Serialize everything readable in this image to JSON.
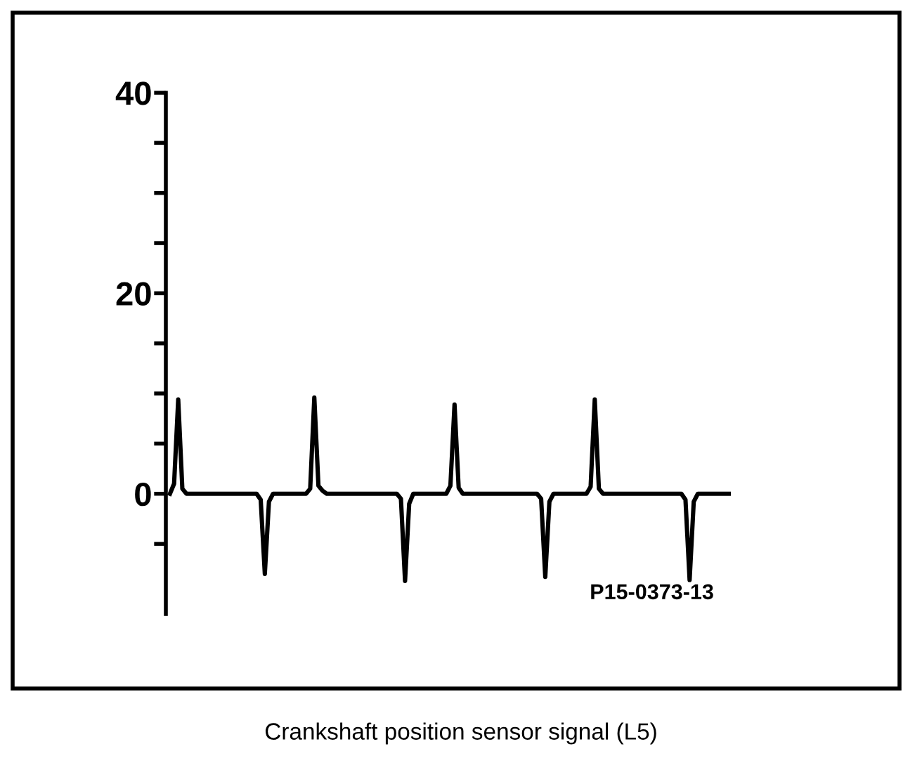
{
  "chart_data": {
    "type": "line",
    "categories": [
      null,
      null,
      null,
      null,
      null,
      null,
      null,
      null,
      null,
      null,
      null,
      null,
      null,
      null,
      null,
      null,
      null,
      null,
      null,
      null,
      null,
      null,
      null,
      null,
      null,
      null,
      null,
      null,
      null,
      null,
      null,
      null,
      null,
      null,
      null,
      null,
      null,
      null,
      null,
      null,
      null,
      null,
      null,
      null,
      null,
      null,
      null,
      null,
      null,
      null,
      null,
      null,
      null,
      null,
      null,
      null,
      null,
      null,
      null,
      null,
      null,
      null,
      null,
      null,
      null,
      null,
      null,
      null,
      null,
      null,
      null,
      null,
      null,
      null,
      null,
      null,
      null,
      null,
      null,
      null,
      null,
      null,
      null,
      null,
      null,
      null,
      null,
      null,
      null,
      null,
      null,
      null,
      null,
      null,
      null,
      null,
      null,
      null,
      null,
      null,
      null,
      null,
      null,
      null,
      null,
      null,
      null,
      null,
      null,
      null,
      null,
      null,
      null,
      null,
      null,
      null,
      null,
      null,
      null,
      null,
      null,
      null,
      null,
      null,
      null,
      null,
      null,
      null,
      null,
      null,
      null,
      null,
      null,
      null,
      null,
      null,
      null
    ],
    "series": [
      {
        "color": "#000000",
        "values": [
          0,
          1.0,
          9.4,
          0.5,
          0,
          0,
          0,
          0,
          0,
          0,
          0,
          0,
          0,
          0,
          0,
          0,
          0,
          0,
          0,
          0,
          0,
          0,
          -0.6,
          -8.0,
          -0.8,
          0,
          0,
          0,
          0,
          0,
          0,
          0,
          0,
          0,
          0.5,
          9.6,
          0.8,
          0.3,
          0,
          0,
          0,
          0,
          0,
          0,
          0,
          0,
          0,
          0,
          0,
          0,
          0,
          0,
          0,
          0,
          0,
          0,
          -0.5,
          -8.7,
          -1.0,
          0,
          0,
          0,
          0,
          0,
          0,
          0,
          0,
          0,
          0.8,
          8.9,
          0.6,
          0,
          0,
          0,
          0,
          0,
          0,
          0,
          0,
          0,
          0,
          0,
          0,
          0,
          0,
          0,
          0,
          0,
          0,
          0,
          -0.5,
          -8.3,
          -0.8,
          0,
          0,
          0,
          0,
          0,
          0,
          0,
          0,
          0,
          0.7,
          9.4,
          0.5,
          0,
          0,
          0,
          0,
          0,
          0,
          0,
          0,
          0,
          0,
          0,
          0,
          0,
          0,
          0,
          0,
          0,
          0,
          0,
          0,
          -0.6,
          -8.6,
          -0.8,
          0,
          0,
          0,
          0,
          0,
          0,
          0,
          0,
          0
        ]
      }
    ],
    "ylim": [
      -12,
      40
    ],
    "yticks": [
      {
        "value": -5,
        "label": null
      },
      0,
      {
        "value": 5,
        "label": null
      },
      {
        "value": 10,
        "label": null
      },
      {
        "value": 15,
        "label": null
      },
      20,
      {
        "value": 25,
        "label": null
      },
      {
        "value": 30,
        "label": null
      },
      {
        "value": 35,
        "label": null
      },
      40
    ],
    "tick_labels": "y",
    "annotations": [
      "P15-0373-13",
      "Crankshaft position sensor signal (L5)"
    ]
  }
}
